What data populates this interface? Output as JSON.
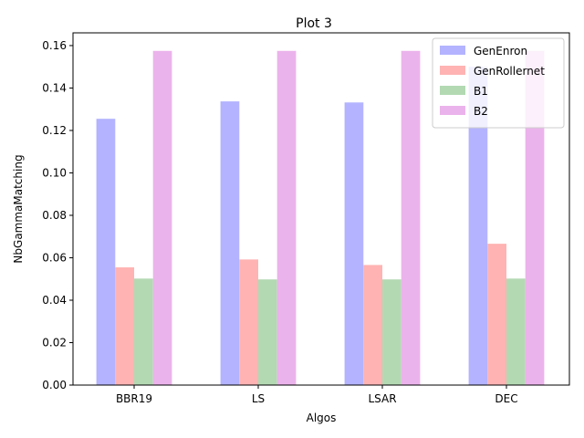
{
  "chart_data": {
    "type": "bar",
    "title": "Plot 3",
    "xlabel": "Algos",
    "ylabel": "NbGammaMatching",
    "categories": [
      "BBR19",
      "LS",
      "LSAR",
      "DEC"
    ],
    "series": [
      {
        "name": "GenEnron",
        "color": "#b3b3ff",
        "values": [
          0.1255,
          0.1337,
          0.1332,
          0.15
        ]
      },
      {
        "name": "GenRollernet",
        "color": "#ffb3b3",
        "values": [
          0.0555,
          0.0592,
          0.0566,
          0.0666
        ]
      },
      {
        "name": "B1",
        "color": "#b3d9b3",
        "values": [
          0.0502,
          0.0498,
          0.0498,
          0.0502
        ]
      },
      {
        "name": "B2",
        "color": "#ebb3eb",
        "values": [
          0.1575,
          0.1575,
          0.1575,
          0.1575
        ]
      }
    ],
    "ylim": [
      0,
      0.166
    ],
    "yticks": [
      "0.00",
      "0.02",
      "0.04",
      "0.06",
      "0.08",
      "0.10",
      "0.12",
      "0.14",
      "0.16"
    ],
    "grid": false,
    "legend_position": "top-right"
  }
}
